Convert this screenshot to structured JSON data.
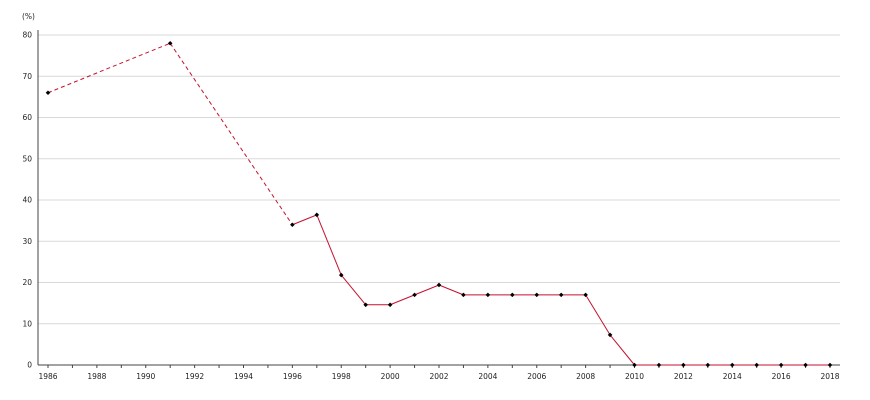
{
  "chart_data": {
    "type": "line",
    "unit_label": "(%)",
    "xlim": [
      1986,
      2018
    ],
    "ylim": [
      0,
      80
    ],
    "y_ticks": [
      0,
      10,
      20,
      30,
      40,
      50,
      60,
      70,
      80
    ],
    "x_tick_labels": [
      1986,
      1988,
      1990,
      1992,
      1994,
      1996,
      1998,
      2000,
      2002,
      2004,
      2006,
      2008,
      2010,
      2012,
      2014,
      2016,
      2018
    ],
    "grid": "horizontal",
    "colors": {
      "line": "#c4122f",
      "marker": "#000000",
      "grid": "#d9d9d9"
    },
    "series": [
      {
        "points": [
          {
            "x": 1986,
            "y": 66
          },
          {
            "x": 1991,
            "y": 78
          },
          {
            "x": 1996,
            "y": 34
          },
          {
            "x": 1997,
            "y": 36.4
          },
          {
            "x": 1998,
            "y": 21.8
          },
          {
            "x": 1999,
            "y": 14.6
          },
          {
            "x": 2000,
            "y": 14.6
          },
          {
            "x": 2001,
            "y": 17
          },
          {
            "x": 2002,
            "y": 19.4
          },
          {
            "x": 2003,
            "y": 17
          },
          {
            "x": 2004,
            "y": 17
          },
          {
            "x": 2005,
            "y": 17
          },
          {
            "x": 2006,
            "y": 17
          },
          {
            "x": 2007,
            "y": 17
          },
          {
            "x": 2008,
            "y": 17
          },
          {
            "x": 2009,
            "y": 7.3
          },
          {
            "x": 2010,
            "y": 0
          },
          {
            "x": 2011,
            "y": 0
          },
          {
            "x": 2012,
            "y": 0
          },
          {
            "x": 2013,
            "y": 0
          },
          {
            "x": 2014,
            "y": 0
          },
          {
            "x": 2015,
            "y": 0
          },
          {
            "x": 2016,
            "y": 0
          },
          {
            "x": 2017,
            "y": 0
          },
          {
            "x": 2018,
            "y": 0
          }
        ],
        "dashed_segments_until_x": 1996
      }
    ]
  }
}
